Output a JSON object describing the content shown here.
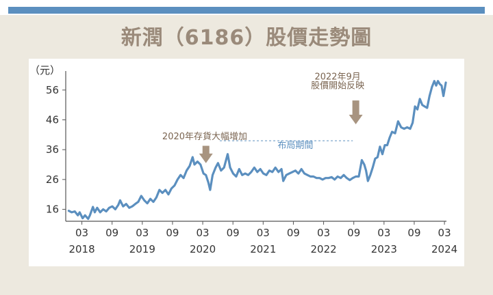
{
  "title": "新潤（6186）股價走勢圖",
  "chart_data": {
    "type": "line",
    "title": "新潤（6186）股價走勢圖",
    "ylabel": "（元）",
    "xlabel": "",
    "ylim": [
      12,
      61
    ],
    "yticks": [
      16,
      26,
      36,
      46,
      56
    ],
    "xlim": [
      2017.9,
      2024.2
    ],
    "xticks": [
      {
        "month": "03",
        "year": "2018",
        "x": 2018.167
      },
      {
        "month": "09",
        "year": "",
        "x": 2018.667
      },
      {
        "month": "03",
        "year": "2019",
        "x": 2019.167
      },
      {
        "month": "09",
        "year": "",
        "x": 2019.667
      },
      {
        "month": "03",
        "year": "2020",
        "x": 2020.167
      },
      {
        "month": "09",
        "year": "",
        "x": 2020.667
      },
      {
        "month": "03",
        "year": "2021",
        "x": 2021.167
      },
      {
        "month": "09",
        "year": "",
        "x": 2021.667
      },
      {
        "month": "03",
        "year": "2022",
        "x": 2022.167
      },
      {
        "month": "09",
        "year": "",
        "x": 2022.667
      },
      {
        "month": "03",
        "year": "2023",
        "x": 2023.167
      },
      {
        "month": "09",
        "year": "",
        "x": 2023.667
      },
      {
        "month": "03",
        "year": "2024",
        "x": 2024.167
      }
    ],
    "series": [
      {
        "name": "",
        "color": "#5b8fbf",
        "points": [
          [
            2017.95,
            15.5
          ],
          [
            2018.0,
            15.0
          ],
          [
            2018.05,
            15.3
          ],
          [
            2018.1,
            14.0
          ],
          [
            2018.13,
            15.0
          ],
          [
            2018.18,
            13.0
          ],
          [
            2018.22,
            14.0
          ],
          [
            2018.27,
            12.8
          ],
          [
            2018.3,
            14.0
          ],
          [
            2018.35,
            16.8
          ],
          [
            2018.38,
            15.0
          ],
          [
            2018.42,
            16.5
          ],
          [
            2018.47,
            15.0
          ],
          [
            2018.52,
            16.0
          ],
          [
            2018.57,
            15.3
          ],
          [
            2018.62,
            16.5
          ],
          [
            2018.67,
            17.0
          ],
          [
            2018.72,
            16.0
          ],
          [
            2018.77,
            17.5
          ],
          [
            2018.8,
            19.0
          ],
          [
            2018.85,
            17.0
          ],
          [
            2018.9,
            17.8
          ],
          [
            2018.95,
            16.5
          ],
          [
            2019.0,
            17.0
          ],
          [
            2019.05,
            17.8
          ],
          [
            2019.1,
            18.5
          ],
          [
            2019.15,
            20.5
          ],
          [
            2019.2,
            19.0
          ],
          [
            2019.25,
            18.0
          ],
          [
            2019.3,
            19.5
          ],
          [
            2019.35,
            18.5
          ],
          [
            2019.4,
            20.0
          ],
          [
            2019.45,
            22.5
          ],
          [
            2019.5,
            21.5
          ],
          [
            2019.55,
            22.5
          ],
          [
            2019.6,
            21.0
          ],
          [
            2019.65,
            23.0
          ],
          [
            2019.7,
            24.0
          ],
          [
            2019.75,
            26.0
          ],
          [
            2019.8,
            27.5
          ],
          [
            2019.85,
            26.5
          ],
          [
            2019.9,
            29.0
          ],
          [
            2019.95,
            30.5
          ],
          [
            2020.0,
            33.5
          ],
          [
            2020.03,
            31.0
          ],
          [
            2020.08,
            32.0
          ],
          [
            2020.13,
            31.0
          ],
          [
            2020.18,
            28.0
          ],
          [
            2020.22,
            27.5
          ],
          [
            2020.26,
            25.0
          ],
          [
            2020.29,
            22.5
          ],
          [
            2020.33,
            27.5
          ],
          [
            2020.38,
            30.0
          ],
          [
            2020.42,
            31.5
          ],
          [
            2020.47,
            29.0
          ],
          [
            2020.52,
            30.0
          ],
          [
            2020.58,
            34.5
          ],
          [
            2020.62,
            30.0
          ],
          [
            2020.67,
            28.0
          ],
          [
            2020.72,
            27.0
          ],
          [
            2020.77,
            29.5
          ],
          [
            2020.82,
            27.5
          ],
          [
            2020.87,
            28.0
          ],
          [
            2020.92,
            27.5
          ],
          [
            2020.97,
            28.5
          ],
          [
            2021.02,
            30.0
          ],
          [
            2021.07,
            28.5
          ],
          [
            2021.12,
            29.5
          ],
          [
            2021.17,
            28.0
          ],
          [
            2021.22,
            27.5
          ],
          [
            2021.27,
            29.0
          ],
          [
            2021.32,
            28.5
          ],
          [
            2021.37,
            30.0
          ],
          [
            2021.42,
            28.5
          ],
          [
            2021.47,
            29.5
          ],
          [
            2021.5,
            25.5
          ],
          [
            2021.55,
            27.5
          ],
          [
            2021.6,
            28.0
          ],
          [
            2021.65,
            28.5
          ],
          [
            2021.7,
            29.0
          ],
          [
            2021.75,
            28.0
          ],
          [
            2021.8,
            29.5
          ],
          [
            2021.85,
            28.0
          ],
          [
            2021.9,
            27.5
          ],
          [
            2021.95,
            27.0
          ],
          [
            2022.0,
            27.0
          ],
          [
            2022.05,
            26.5
          ],
          [
            2022.1,
            26.5
          ],
          [
            2022.15,
            26.0
          ],
          [
            2022.2,
            26.5
          ],
          [
            2022.25,
            26.5
          ],
          [
            2022.3,
            26.8
          ],
          [
            2022.35,
            26.0
          ],
          [
            2022.4,
            27.0
          ],
          [
            2022.45,
            26.5
          ],
          [
            2022.5,
            27.5
          ],
          [
            2022.55,
            26.5
          ],
          [
            2022.6,
            25.8
          ],
          [
            2022.65,
            26.5
          ],
          [
            2022.7,
            27.0
          ],
          [
            2022.75,
            27.0
          ],
          [
            2022.8,
            32.5
          ],
          [
            2022.84,
            31.0
          ],
          [
            2022.87,
            29.0
          ],
          [
            2022.9,
            25.5
          ],
          [
            2022.94,
            27.5
          ],
          [
            2022.98,
            30.0
          ],
          [
            2023.02,
            33.0
          ],
          [
            2023.06,
            33.5
          ],
          [
            2023.1,
            37.0
          ],
          [
            2023.14,
            34.5
          ],
          [
            2023.18,
            37.5
          ],
          [
            2023.22,
            37.5
          ],
          [
            2023.26,
            40.0
          ],
          [
            2023.3,
            42.0
          ],
          [
            2023.35,
            41.5
          ],
          [
            2023.4,
            45.5
          ],
          [
            2023.45,
            43.5
          ],
          [
            2023.5,
            43.0
          ],
          [
            2023.55,
            43.5
          ],
          [
            2023.6,
            43.0
          ],
          [
            2023.64,
            45.0
          ],
          [
            2023.68,
            50.5
          ],
          [
            2023.72,
            49.5
          ],
          [
            2023.76,
            53.0
          ],
          [
            2023.8,
            51.0
          ],
          [
            2023.84,
            50.5
          ],
          [
            2023.88,
            50.0
          ],
          [
            2023.92,
            54.0
          ],
          [
            2023.96,
            57.0
          ],
          [
            2024.0,
            59.0
          ],
          [
            2024.03,
            57.5
          ],
          [
            2024.06,
            59.0
          ],
          [
            2024.09,
            58.0
          ],
          [
            2024.12,
            57.5
          ],
          [
            2024.15,
            54.0
          ],
          [
            2024.19,
            58.5
          ]
        ]
      }
    ],
    "annotations": [
      {
        "text": "2020年存貨大幅增加",
        "x": 2020.2,
        "y": 39.5,
        "color": "#8a7a6a"
      },
      {
        "text": "2022年9月",
        "x": 2022.4,
        "y": 59.5,
        "color": "#8a7a6a"
      },
      {
        "text": "股價開始反映",
        "x": 2022.4,
        "y": 56.5,
        "color": "#8a7a6a"
      },
      {
        "text": "布局期間",
        "x": 2021.7,
        "y": 36.5,
        "color": "#5b8fbf"
      }
    ],
    "grid": false,
    "legend": "none"
  }
}
